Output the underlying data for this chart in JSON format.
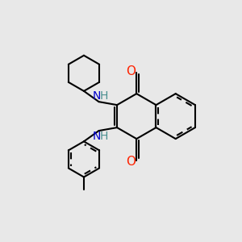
{
  "background_color": "#e8e8e8",
  "bond_color": "#000000",
  "bond_width": 1.5,
  "n_color": "#0000cc",
  "o_color": "#ff2200",
  "h_color": "#4a9090",
  "figsize": [
    3.0,
    3.0
  ],
  "dpi": 100,
  "xlim": [
    0,
    10
  ],
  "ylim": [
    0,
    10
  ]
}
